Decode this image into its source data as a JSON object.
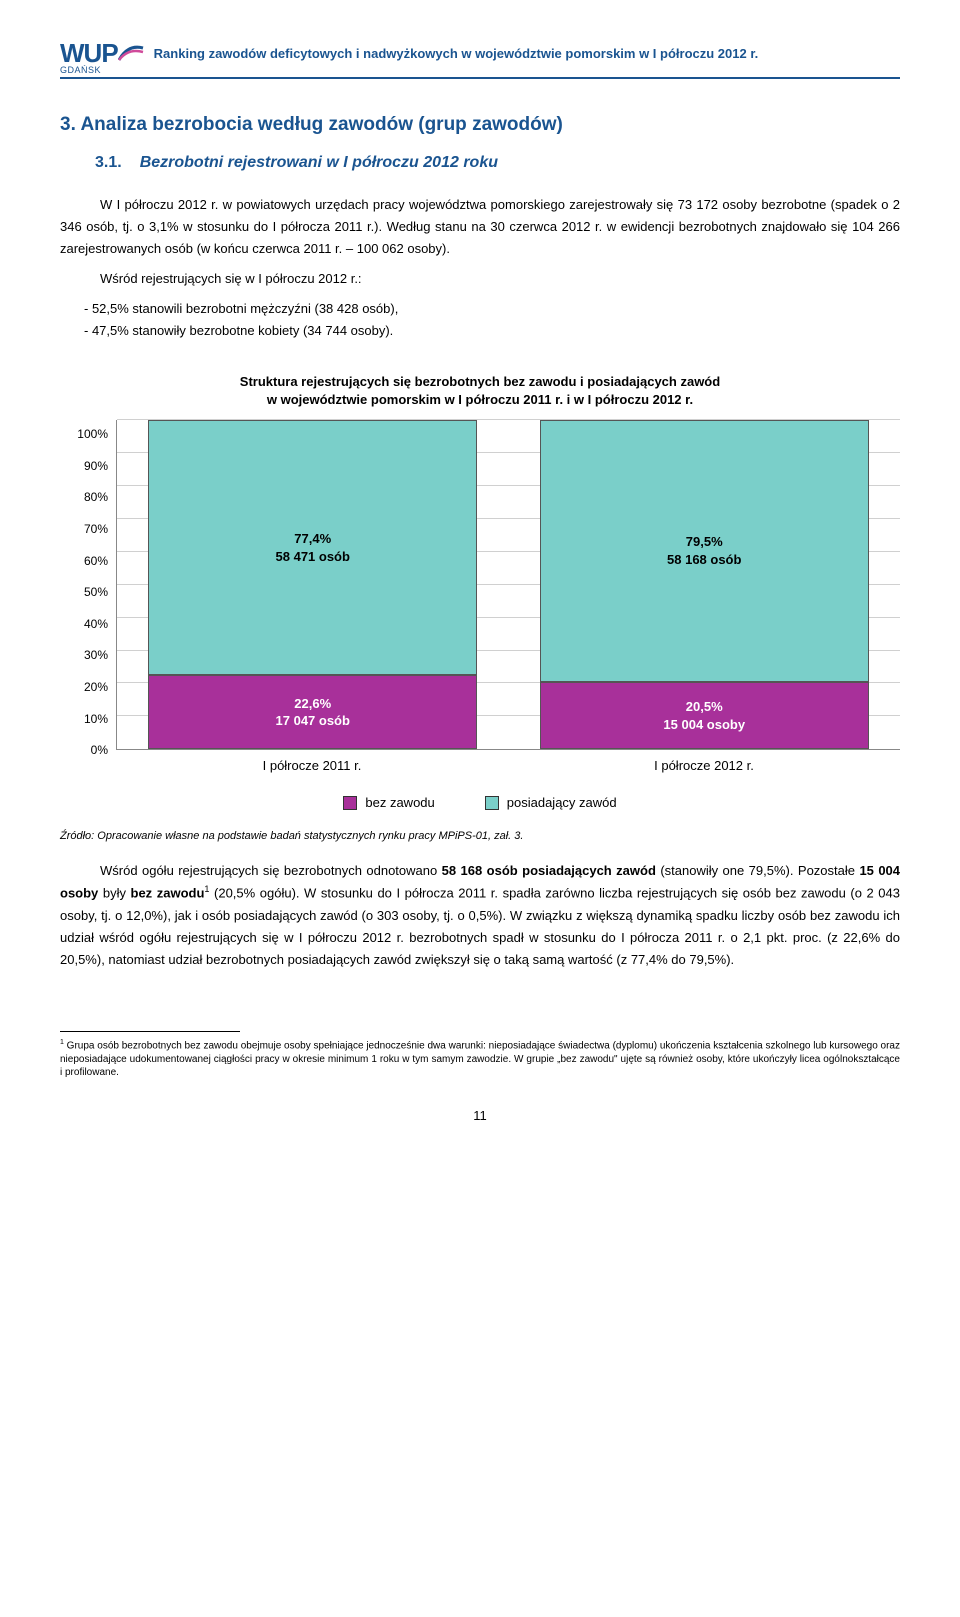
{
  "header": {
    "logo_main": "WUP",
    "logo_sub": "GDAŃSK",
    "title": "Ranking zawodów deficytowych i nadwyżkowych w województwie pomorskim w I półroczu 2012 r."
  },
  "section": {
    "num": "3.",
    "title": "Analiza bezrobocia według zawodów (grup zawodów)",
    "sub_num": "3.1.",
    "sub_title": "Bezrobotni rejestrowani w I półroczu 2012 roku"
  },
  "para1": "W I półroczu 2012 r. w powiatowych urzędach pracy województwa pomorskiego zarejestrowały się 73 172 osoby bezrobotne (spadek o 2 346 osób, tj. o 3,1% w stosunku do I półrocza 2011 r.). Według stanu na 30 czerwca 2012 r. w ewidencji bezrobotnych znajdowało się 104 266 zarejestrowanych osób (w końcu czerwca 2011 r. – 100 062 osoby).",
  "para2": "Wśród rejestrujących się w I półroczu 2012 r.:",
  "bullets": [
    "- 52,5% stanowili bezrobotni mężczyźni (38 428 osób),",
    "- 47,5% stanowiły bezrobotne kobiety (34 744 osoby)."
  ],
  "chart": {
    "title_l1": "Struktura rejestrujących się bezrobotnych bez zawodu i posiadających zawód",
    "title_l2": "w województwie pomorskim w I półroczu 2011 r. i w I półroczu 2012 r.",
    "type": "stacked-bar",
    "y_ticks": [
      "100%",
      "90%",
      "80%",
      "70%",
      "60%",
      "50%",
      "40%",
      "30%",
      "20%",
      "10%",
      "0%"
    ],
    "ylim": [
      0,
      100
    ],
    "colors": {
      "top": "#7acfc9",
      "bottom": "#a8309a",
      "grid": "#d0d0d0",
      "axis": "#888888"
    },
    "bars": [
      {
        "x_label": "I półrocze 2011 r.",
        "top": {
          "pct": 77.4,
          "label_pct": "77,4%",
          "label_n": "58 471 osób"
        },
        "bottom": {
          "pct": 22.6,
          "label_pct": "22,6%",
          "label_n": "17 047 osób"
        }
      },
      {
        "x_label": "I półrocze 2012 r.",
        "top": {
          "pct": 79.5,
          "label_pct": "79,5%",
          "label_n": "58 168 osób"
        },
        "bottom": {
          "pct": 20.5,
          "label_pct": "20,5%",
          "label_n": "15 004 osoby"
        }
      }
    ],
    "legend": [
      {
        "color": "#a8309a",
        "label": "bez zawodu"
      },
      {
        "color": "#7acfc9",
        "label": "posiadający zawód"
      }
    ]
  },
  "source": "Źródło: Opracowanie własne na podstawie badań statystycznych rynku pracy MPiPS-01, zał. 3.",
  "para3_pre": "Wśród ogółu rejestrujących się bezrobotnych odnotowano ",
  "para3_b1": "58 168 osób posiadających zawód",
  "para3_mid1": " (stanowiły one 79,5%). Pozostałe ",
  "para3_b2": "15 004 osoby",
  "para3_mid2": " były ",
  "para3_b3": "bez zawodu",
  "para3_sup": "1",
  "para3_rest": " (20,5% ogółu). W stosunku do I półrocza 2011 r. spadła zarówno liczba rejestrujących się osób bez zawodu (o 2 043 osoby, tj. o 12,0%), jak i osób posiadających zawód (o 303 osoby, tj. o 0,5%). W związku z większą dynamiką spadku liczby osób bez zawodu ich udział wśród ogółu rejestrujących się w I półroczu 2012 r. bezrobotnych spadł w stosunku do I półrocza 2011 r. o 2,1 pkt. proc. (z 22,6% do 20,5%), natomiast udział bezrobotnych posiadających zawód zwiększył się o taką samą wartość (z 77,4% do 79,5%).",
  "footnote": {
    "num": "1",
    "text": " Grupa osób bezrobotnych bez zawodu obejmuje osoby spełniające jednocześnie dwa warunki: nieposiadające świadectwa (dyplomu) ukończenia kształcenia szkolnego lub kursowego oraz nieposiadające udokumentowanej ciągłości pracy w okresie minimum 1 roku w tym samym zawodzie. W grupie „bez zawodu\" ujęte są również osoby, które ukończyły licea ogólnokształcące i profilowane."
  },
  "page_number": "11"
}
